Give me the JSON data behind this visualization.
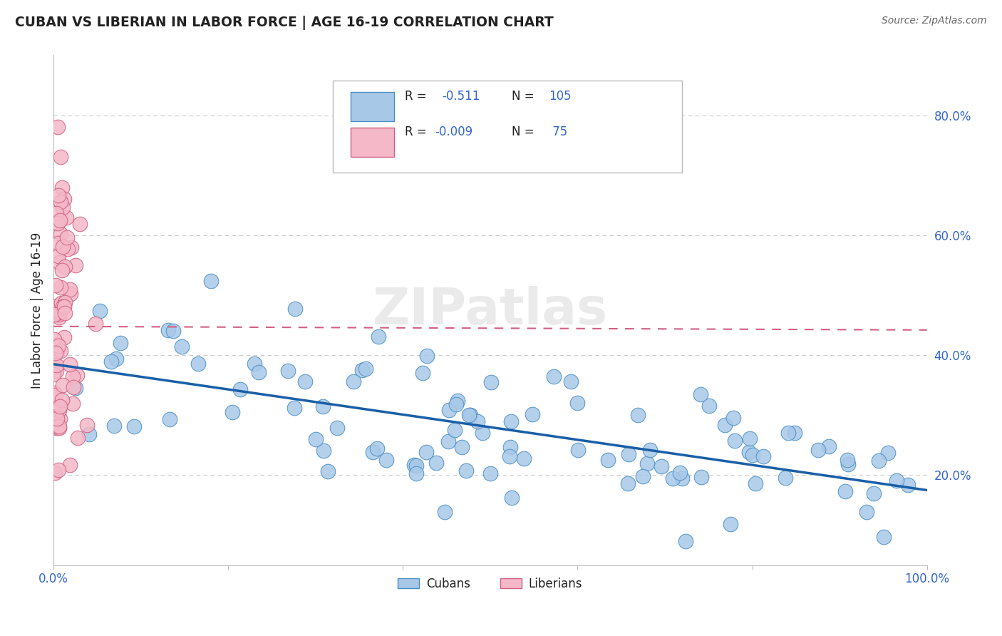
{
  "title": "CUBAN VS LIBERIAN IN LABOR FORCE | AGE 16-19 CORRELATION CHART",
  "source_text": "Source: ZipAtlas.com",
  "ylabel": "In Labor Force | Age 16-19",
  "xlim": [
    0.0,
    1.0
  ],
  "ylim": [
    0.05,
    0.9
  ],
  "xtick_positions": [
    0.0,
    0.2,
    0.4,
    0.6,
    0.8,
    1.0
  ],
  "xtick_labels": [
    "0.0%",
    "",
    "",
    "",
    "",
    "100.0%"
  ],
  "ytick_positions": [
    0.2,
    0.4,
    0.6,
    0.8
  ],
  "ytick_labels": [
    "20.0%",
    "40.0%",
    "60.0%",
    "80.0%"
  ],
  "blue_face": "#a8c8e8",
  "blue_edge": "#4a90c4",
  "pink_face": "#f4b8c8",
  "pink_edge": "#d06080",
  "blue_line_color": "#1a5fa8",
  "pink_line_color": "#d06080",
  "text_color_dark": "#222222",
  "text_color_blue": "#3366cc",
  "axis_color": "#bbbbbb",
  "grid_color": "#cccccc",
  "watermark_color": "#dddddd",
  "source_color": "#666666",
  "blue_line_start_y": 0.385,
  "blue_line_end_y": 0.175,
  "pink_line_start_y": 0.448,
  "pink_line_end_y": 0.442
}
